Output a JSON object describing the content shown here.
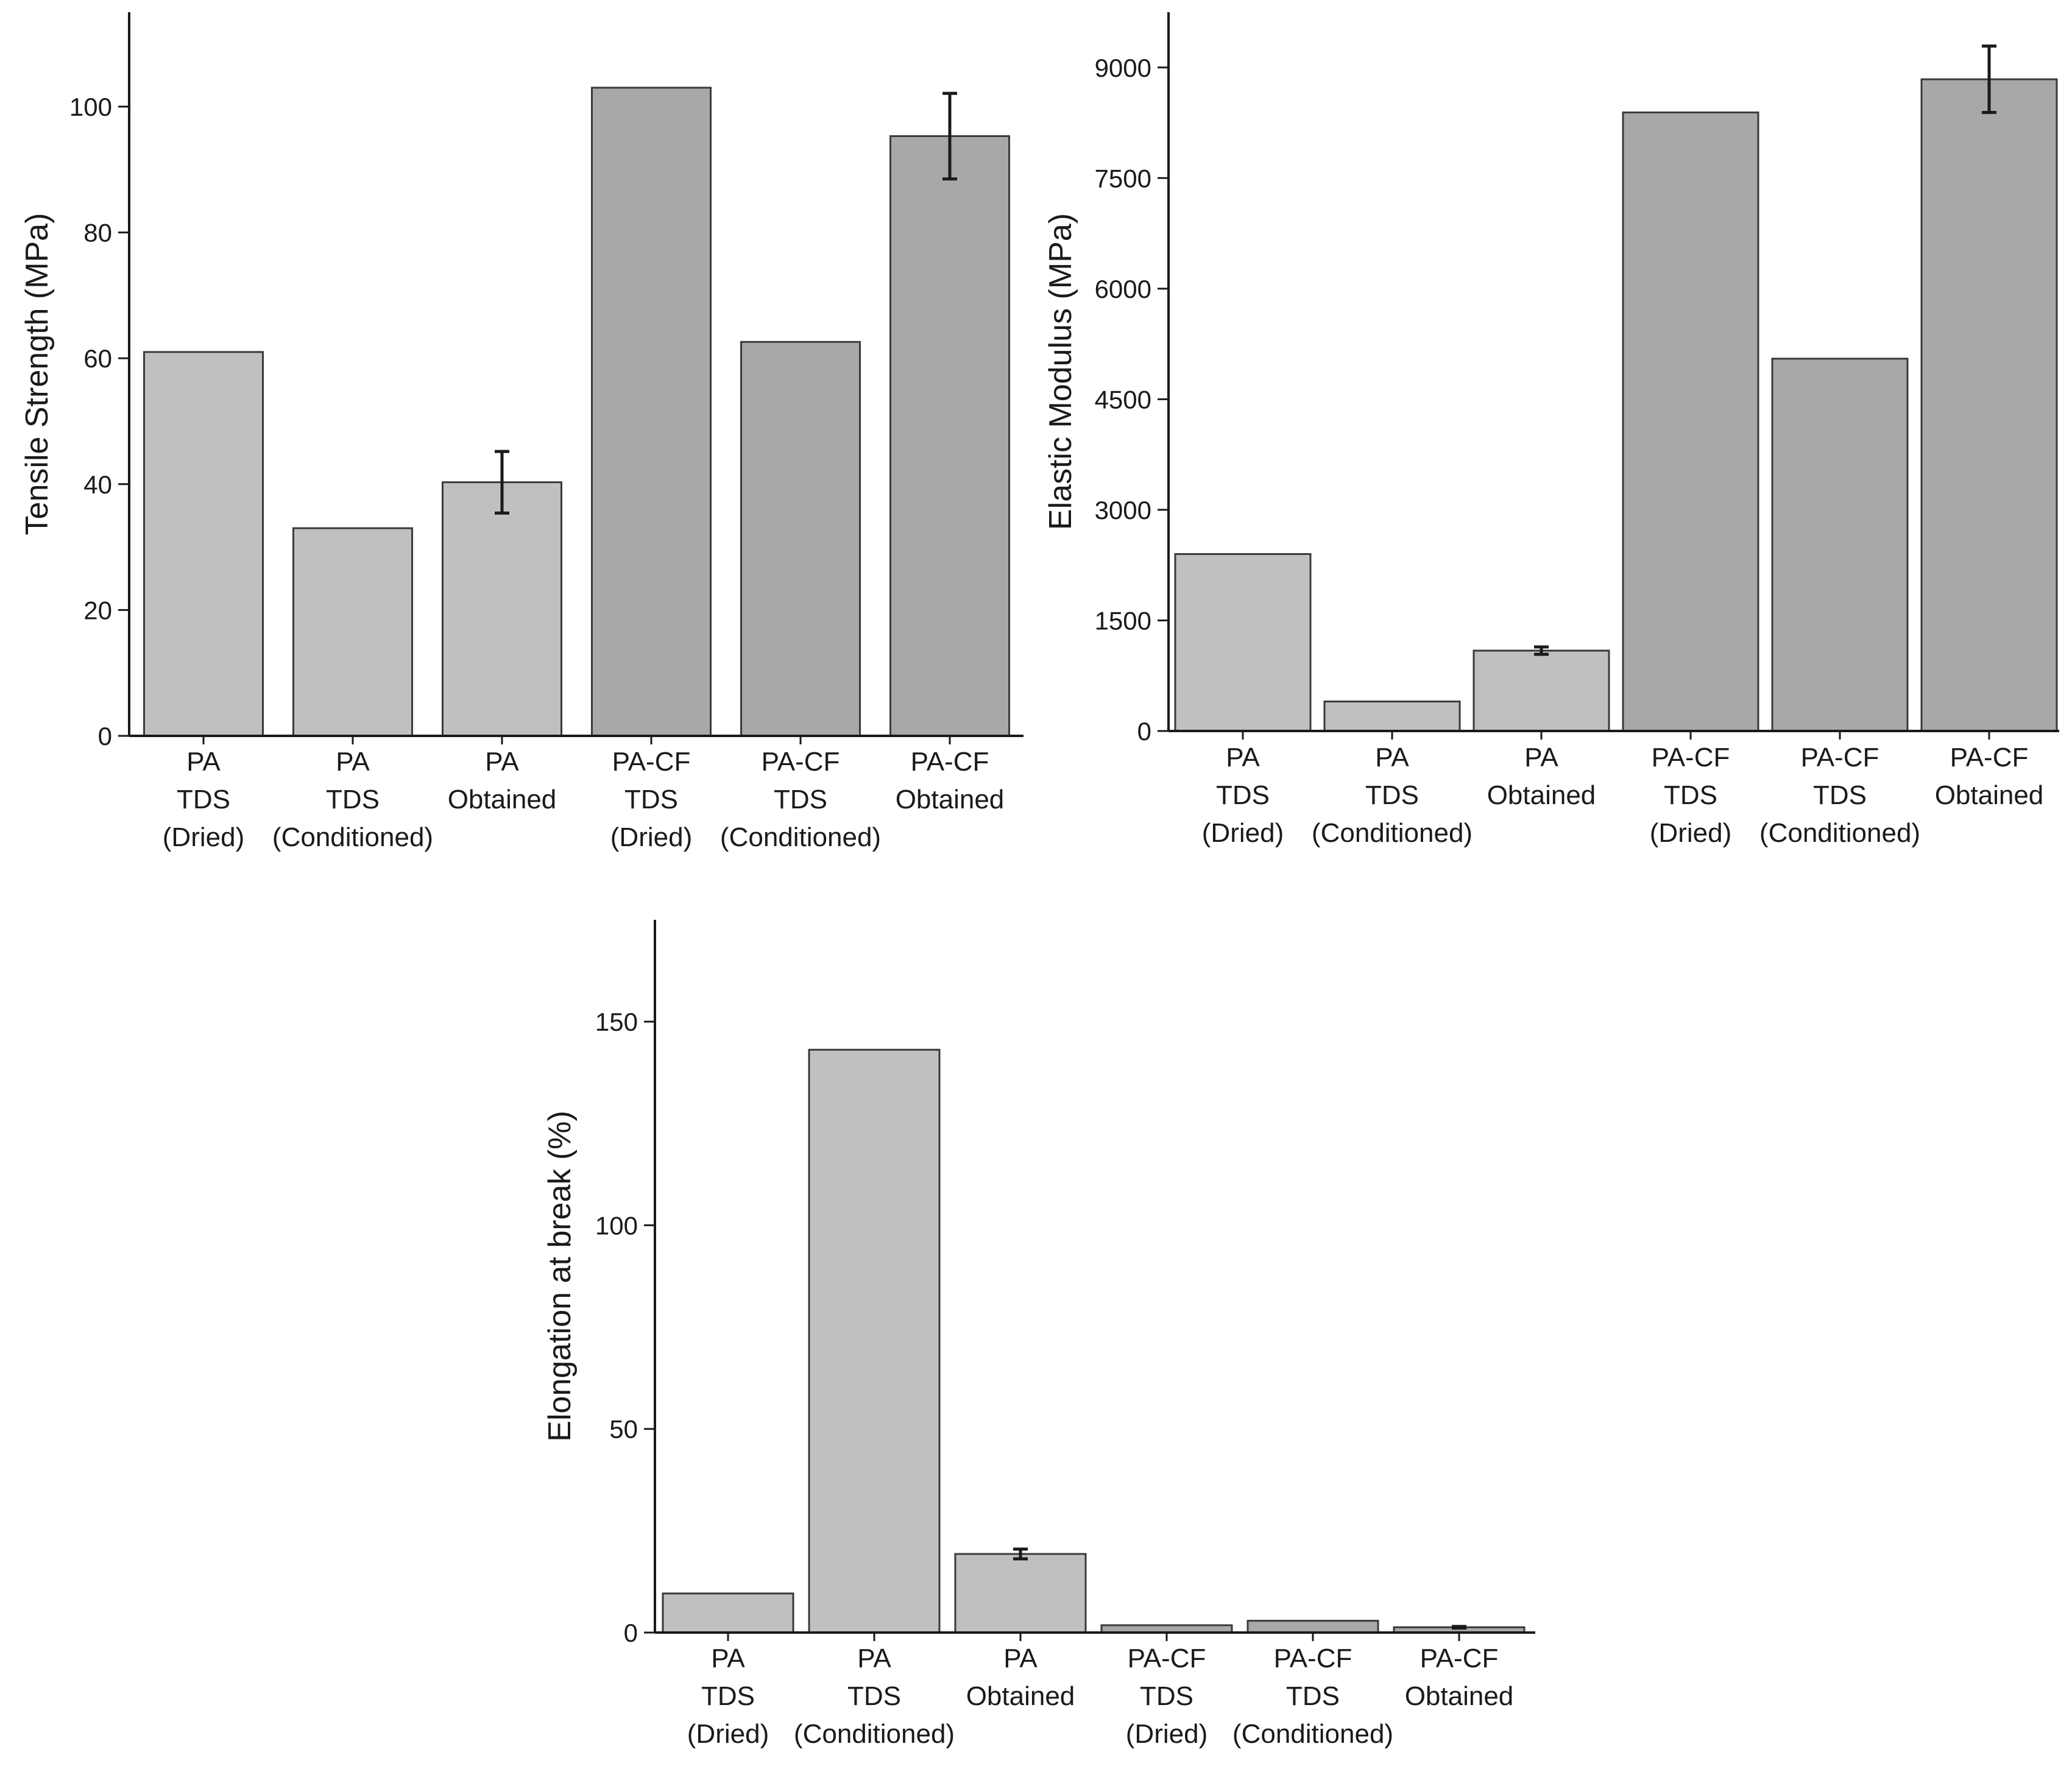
{
  "chart_data": [
    {
      "type": "bar",
      "ylabel": "Tensile Strength (MPa)",
      "xlabel": "",
      "ylim": [
        0,
        115
      ],
      "yticks": [
        0,
        20,
        40,
        60,
        80,
        100
      ],
      "categories": [
        [
          "PA",
          "TDS",
          "(Dried)"
        ],
        [
          "PA",
          "TDS",
          "(Conditioned)"
        ],
        [
          "PA",
          "Obtained"
        ],
        [
          "PA-CF",
          "TDS",
          "(Dried)"
        ],
        [
          "PA-CF",
          "TDS",
          "(Conditioned)"
        ],
        [
          "PA-CF",
          "Obtained"
        ]
      ],
      "values": [
        61,
        33,
        40.3,
        103,
        62.6,
        95.3
      ],
      "errors": [
        null,
        null,
        4.9,
        null,
        null,
        6.8
      ],
      "colors": [
        "#c0c0c0",
        "#c0c0c0",
        "#c0c0c0",
        "#a8a8a8",
        "#a8a8a8",
        "#a8a8a8"
      ]
    },
    {
      "type": "bar",
      "ylabel": "Elastic Modulus (MPa)",
      "xlabel": "",
      "ylim": [
        0,
        9750
      ],
      "yticks": [
        0,
        1500,
        3000,
        4500,
        6000,
        7500,
        9000
      ],
      "categories": [
        [
          "PA",
          "TDS",
          "(Dried)"
        ],
        [
          "PA",
          "TDS",
          "(Conditioned)"
        ],
        [
          "PA",
          "Obtained"
        ],
        [
          "PA-CF",
          "TDS",
          "(Dried)"
        ],
        [
          "PA-CF",
          "TDS",
          "(Conditioned)"
        ],
        [
          "PA-CF",
          "Obtained"
        ]
      ],
      "values": [
        2400,
        400,
        1090,
        8390,
        5050,
        8840
      ],
      "errors": [
        null,
        null,
        50,
        null,
        null,
        450
      ],
      "colors": [
        "#c0c0c0",
        "#c0c0c0",
        "#c0c0c0",
        "#a8a8a8",
        "#a8a8a8",
        "#a8a8a8"
      ]
    },
    {
      "type": "bar",
      "ylabel": "Elongation at break (%)",
      "xlabel": "",
      "ylim": [
        0,
        175
      ],
      "yticks": [
        0,
        50,
        100,
        150
      ],
      "categories": [
        [
          "PA",
          "TDS",
          "(Dried)"
        ],
        [
          "PA",
          "TDS",
          "(Conditioned)"
        ],
        [
          "PA",
          "Obtained"
        ],
        [
          "PA-CF",
          "TDS",
          "(Dried)"
        ],
        [
          "PA-CF",
          "TDS",
          "(Conditioned)"
        ],
        [
          "PA-CF",
          "Obtained"
        ]
      ],
      "values": [
        9.6,
        143.1,
        19.3,
        1.8,
        2.9,
        1.3
      ],
      "errors": [
        null,
        null,
        1.2,
        null,
        null,
        0.2
      ],
      "colors": [
        "#c0c0c0",
        "#c0c0c0",
        "#c0c0c0",
        "#a8a8a8",
        "#a8a8a8",
        "#a8a8a8"
      ]
    }
  ]
}
